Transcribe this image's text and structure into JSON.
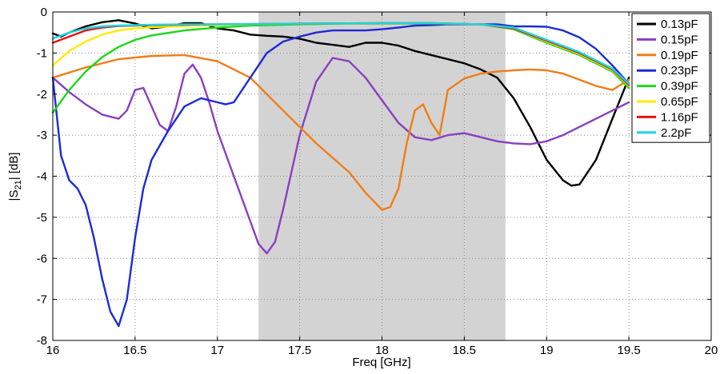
{
  "chart_data": {
    "type": "line",
    "xlabel": "Freq [GHz]",
    "ylabel": "|S21| [dB]",
    "ylabel_main": "|S",
    "ylabel_sub": "21",
    "ylabel_tail": "| [dB]",
    "xlim": [
      16,
      20
    ],
    "ylim": [
      -8,
      0
    ],
    "grid": true,
    "grid_style": "dotted",
    "legend_position": "top-right",
    "highlight_band": {
      "x": [
        17.25,
        18.75
      ],
      "color": "#d3d3d3"
    },
    "x_ticks": [
      16,
      16.5,
      17,
      17.5,
      18,
      18.5,
      19,
      19.5,
      20
    ],
    "x_tick_labels": [
      "16",
      "16.5",
      "17",
      "17.5",
      "18",
      "18.5",
      "19",
      "19.5",
      "20"
    ],
    "y_ticks": [
      0,
      -1,
      -2,
      -3,
      -4,
      -5,
      -6,
      -7,
      -8
    ],
    "y_tick_labels": [
      "0",
      "-1",
      "-2",
      "-3",
      "-4",
      "-5",
      "-6",
      "-7",
      "-8"
    ],
    "series": [
      {
        "name": "0.13pF",
        "color": "#000000",
        "x": [
          16,
          16.05,
          16.1,
          16.2,
          16.3,
          16.4,
          16.5,
          16.6,
          16.7,
          16.8,
          16.9,
          17,
          17.1,
          17.2,
          17.3,
          17.4,
          17.5,
          17.6,
          17.7,
          17.8,
          17.9,
          18,
          18.1,
          18.2,
          18.3,
          18.4,
          18.5,
          18.6,
          18.7,
          18.8,
          18.9,
          19,
          19.1,
          19.15,
          19.2,
          19.3,
          19.4,
          19.5
        ],
        "y": [
          -0.52,
          -0.6,
          -0.5,
          -0.35,
          -0.25,
          -0.2,
          -0.28,
          -0.4,
          -0.35,
          -0.27,
          -0.27,
          -0.4,
          -0.45,
          -0.55,
          -0.58,
          -0.6,
          -0.65,
          -0.75,
          -0.8,
          -0.85,
          -0.75,
          -0.75,
          -0.82,
          -0.95,
          -1.05,
          -1.15,
          -1.25,
          -1.4,
          -1.6,
          -2.1,
          -2.8,
          -3.6,
          -4.1,
          -4.23,
          -4.2,
          -3.6,
          -2.6,
          -1.6
        ]
      },
      {
        "name": "0.15pF",
        "color": "#8b3fbf",
        "x": [
          16,
          16.1,
          16.2,
          16.3,
          16.4,
          16.45,
          16.5,
          16.55,
          16.6,
          16.65,
          16.7,
          16.75,
          16.8,
          16.85,
          16.9,
          16.95,
          17,
          17.1,
          17.2,
          17.25,
          17.3,
          17.35,
          17.4,
          17.5,
          17.6,
          17.7,
          17.8,
          17.9,
          18,
          18.1,
          18.2,
          18.3,
          18.4,
          18.5,
          18.6,
          18.7,
          18.8,
          18.9,
          19,
          19.1,
          19.2,
          19.3,
          19.4,
          19.5
        ],
        "y": [
          -1.6,
          -1.95,
          -2.25,
          -2.5,
          -2.6,
          -2.4,
          -1.9,
          -1.85,
          -2.3,
          -2.75,
          -2.9,
          -2.3,
          -1.5,
          -1.28,
          -1.6,
          -2.2,
          -2.9,
          -4.0,
          -5.1,
          -5.65,
          -5.88,
          -5.6,
          -4.8,
          -3.0,
          -1.7,
          -1.12,
          -1.2,
          -1.6,
          -2.15,
          -2.7,
          -3.05,
          -3.12,
          -3.0,
          -2.95,
          -3.05,
          -3.15,
          -3.2,
          -3.22,
          -3.15,
          -3.0,
          -2.8,
          -2.6,
          -2.4,
          -2.2
        ]
      },
      {
        "name": "0.19pF",
        "color": "#f07d16",
        "x": [
          16,
          16.2,
          16.4,
          16.6,
          16.8,
          17,
          17.2,
          17.4,
          17.6,
          17.8,
          17.9,
          18,
          18.05,
          18.1,
          18.15,
          18.2,
          18.25,
          18.3,
          18.35,
          18.4,
          18.5,
          18.6,
          18.7,
          18.8,
          18.9,
          19,
          19.1,
          19.2,
          19.3,
          19.4,
          19.5
        ],
        "y": [
          -1.6,
          -1.35,
          -1.15,
          -1.07,
          -1.05,
          -1.2,
          -1.6,
          -2.4,
          -3.2,
          -3.9,
          -4.4,
          -4.82,
          -4.75,
          -4.3,
          -3.2,
          -2.4,
          -2.25,
          -2.7,
          -3.0,
          -1.9,
          -1.62,
          -1.5,
          -1.45,
          -1.42,
          -1.4,
          -1.42,
          -1.5,
          -1.65,
          -1.8,
          -1.9,
          -1.65
        ]
      },
      {
        "name": "0.23pF",
        "color": "#1c2bd6",
        "x": [
          16,
          16.05,
          16.1,
          16.15,
          16.2,
          16.25,
          16.3,
          16.35,
          16.4,
          16.45,
          16.5,
          16.55,
          16.6,
          16.7,
          16.8,
          16.9,
          17,
          17.05,
          17.1,
          17.2,
          17.3,
          17.4,
          17.5,
          17.6,
          17.7,
          17.8,
          17.9,
          18,
          18.1,
          18.2,
          18.3,
          18.4,
          18.5,
          18.6,
          18.7,
          18.8,
          18.9,
          19,
          19.1,
          19.2,
          19.3,
          19.4,
          19.5
        ],
        "y": [
          -1.6,
          -3.5,
          -4.1,
          -4.3,
          -4.7,
          -5.5,
          -6.5,
          -7.3,
          -7.65,
          -7.0,
          -5.5,
          -4.3,
          -3.6,
          -2.9,
          -2.3,
          -2.1,
          -2.2,
          -2.25,
          -2.2,
          -1.6,
          -1.0,
          -0.72,
          -0.6,
          -0.5,
          -0.45,
          -0.45,
          -0.45,
          -0.42,
          -0.38,
          -0.33,
          -0.32,
          -0.3,
          -0.3,
          -0.3,
          -0.3,
          -0.35,
          -0.35,
          -0.36,
          -0.45,
          -0.62,
          -0.9,
          -1.3,
          -1.75
        ]
      },
      {
        "name": "0.39pF",
        "color": "#1bd81b",
        "x": [
          16,
          16.1,
          16.2,
          16.3,
          16.4,
          16.5,
          16.6,
          16.8,
          17,
          17.2,
          17.5,
          17.8,
          18,
          18.3,
          18.6,
          18.8,
          19,
          19.2,
          19.4,
          19.5
        ],
        "y": [
          -2.45,
          -1.9,
          -1.45,
          -1.1,
          -0.85,
          -0.68,
          -0.57,
          -0.45,
          -0.38,
          -0.33,
          -0.3,
          -0.28,
          -0.28,
          -0.28,
          -0.3,
          -0.42,
          -0.75,
          -1.05,
          -1.45,
          -1.85
        ]
      },
      {
        "name": "0.65pF",
        "color": "#ffec00",
        "x": [
          16,
          16.1,
          16.2,
          16.3,
          16.4,
          16.5,
          16.6,
          16.8,
          17,
          17.2,
          17.5,
          17.8,
          18,
          18.3,
          18.6,
          18.8,
          19,
          19.2,
          19.4,
          19.5
        ],
        "y": [
          -1.3,
          -0.95,
          -0.72,
          -0.55,
          -0.45,
          -0.4,
          -0.37,
          -0.34,
          -0.32,
          -0.3,
          -0.28,
          -0.27,
          -0.27,
          -0.27,
          -0.3,
          -0.4,
          -0.72,
          -1.02,
          -1.42,
          -1.8
        ]
      },
      {
        "name": "1.16pF",
        "color": "#e81010",
        "x": [
          16,
          16.1,
          16.2,
          16.3,
          16.4,
          16.6,
          16.8,
          17,
          17.3,
          17.6,
          18,
          18.3,
          18.6,
          18.8,
          19,
          19.2,
          19.4,
          19.5
        ],
        "y": [
          -0.75,
          -0.6,
          -0.45,
          -0.38,
          -0.34,
          -0.32,
          -0.31,
          -0.3,
          -0.29,
          -0.28,
          -0.27,
          -0.27,
          -0.3,
          -0.4,
          -0.7,
          -1.0,
          -1.4,
          -1.78
        ]
      },
      {
        "name": "2.2pF",
        "color": "#18d6e0",
        "x": [
          16,
          16.1,
          16.2,
          16.3,
          16.4,
          16.6,
          16.8,
          17,
          17.3,
          17.6,
          18,
          18.3,
          18.6,
          18.8,
          19,
          19.2,
          19.4,
          19.5
        ],
        "y": [
          -0.65,
          -0.5,
          -0.4,
          -0.35,
          -0.33,
          -0.31,
          -0.3,
          -0.3,
          -0.29,
          -0.28,
          -0.27,
          -0.27,
          -0.3,
          -0.38,
          -0.68,
          -0.98,
          -1.38,
          -1.75
        ]
      }
    ]
  }
}
